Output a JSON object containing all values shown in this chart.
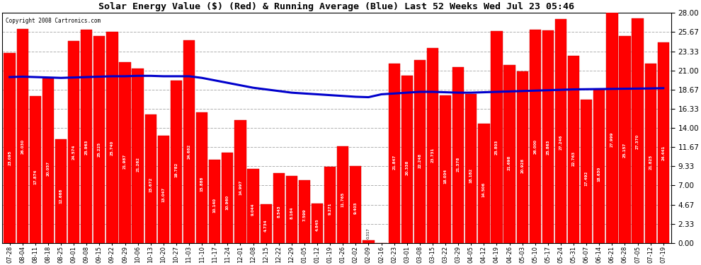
{
  "title": "Solar Energy Value ($) (Red) & Running Average (Blue) Last 52 Weeks Wed Jul 23 05:46",
  "copyright": "Copyright 2008 Cartronics.com",
  "bar_color": "#ff0000",
  "line_color": "#0000cc",
  "background_color": "#ffffff",
  "grid_color": "#b0b0b0",
  "ylim": [
    0.0,
    28.0
  ],
  "yticks": [
    0.0,
    2.33,
    4.67,
    7.0,
    9.33,
    11.67,
    14.0,
    16.33,
    18.67,
    21.0,
    23.33,
    25.67,
    28.0
  ],
  "dates": [
    "07-28",
    "08-04",
    "08-11",
    "08-18",
    "08-25",
    "09-01",
    "09-08",
    "09-15",
    "09-22",
    "09-29",
    "10-06",
    "10-13",
    "10-20",
    "10-27",
    "11-03",
    "11-10",
    "11-17",
    "11-24",
    "12-01",
    "12-08",
    "12-15",
    "12-22",
    "12-29",
    "01-05",
    "01-12",
    "01-19",
    "01-26",
    "02-02",
    "02-09",
    "02-16",
    "02-23",
    "03-01",
    "03-08",
    "03-15",
    "03-22",
    "03-29",
    "04-05",
    "04-12",
    "04-19",
    "04-26",
    "05-03",
    "05-10",
    "05-17",
    "05-24",
    "05-31",
    "06-07",
    "06-14",
    "06-21",
    "06-28",
    "07-05",
    "07-12",
    "07-19"
  ],
  "values": [
    23.095,
    26.03,
    17.874,
    20.057,
    12.668,
    24.574,
    25.963,
    25.225,
    25.74,
    21.987,
    21.262,
    15.672,
    13.047,
    19.782,
    24.682,
    15.888,
    10.14,
    10.96,
    14.997,
    9.044,
    4.734,
    8.543,
    8.164,
    7.599,
    4.845,
    9.271,
    11.765,
    9.403,
    0.317,
    0.0,
    21.847,
    20.338,
    22.248,
    23.731,
    18.004,
    21.378,
    18.182,
    14.506,
    25.803,
    21.698,
    20.928,
    26.0,
    25.863,
    27.246,
    22.763,
    17.492,
    18.63,
    27.999,
    25.157,
    27.37,
    21.825,
    24.441
  ],
  "running_avg": [
    20.2,
    20.25,
    20.2,
    20.15,
    20.1,
    20.15,
    20.2,
    20.25,
    20.3,
    20.3,
    20.35,
    20.35,
    20.3,
    20.3,
    20.3,
    20.1,
    19.8,
    19.5,
    19.2,
    18.9,
    18.7,
    18.5,
    18.3,
    18.2,
    18.1,
    18.0,
    17.9,
    17.8,
    17.75,
    18.1,
    18.2,
    18.3,
    18.4,
    18.4,
    18.35,
    18.3,
    18.3,
    18.35,
    18.4,
    18.45,
    18.5,
    18.55,
    18.6,
    18.65,
    18.7,
    18.72,
    18.74,
    18.76,
    18.78,
    18.8,
    18.82,
    18.85
  ]
}
